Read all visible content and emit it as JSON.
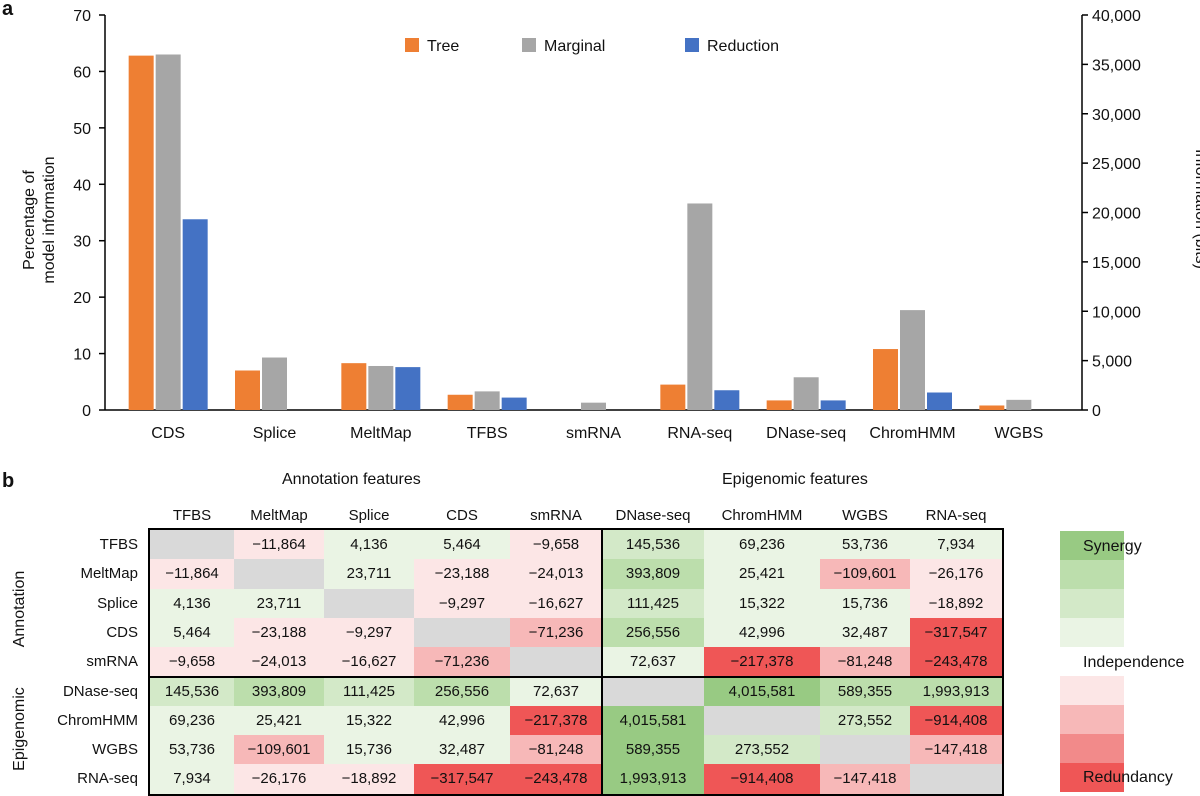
{
  "panel_a_label": "a",
  "panel_b_label": "b",
  "chart_data": [
    {
      "type": "bar",
      "title": "",
      "categories": [
        "CDS",
        "Splice",
        "MeltMap",
        "TFBS",
        "smRNA",
        "RNA-seq",
        "DNase-seq",
        "ChromHMM",
        "WGBS"
      ],
      "series": [
        {
          "name": "Tree",
          "color": "#ee7f33",
          "values": [
            62.8,
            7.0,
            8.3,
            2.7,
            null,
            4.5,
            1.7,
            10.8,
            0.8
          ]
        },
        {
          "name": "Marginal",
          "color": "#a6a6a6",
          "values": [
            63.0,
            9.3,
            7.8,
            3.3,
            1.3,
            36.6,
            5.8,
            17.7,
            1.8
          ]
        },
        {
          "name": "Reduction",
          "color": "#4472c4",
          "values": [
            33.8,
            null,
            7.6,
            2.2,
            null,
            3.5,
            1.7,
            3.1,
            null
          ]
        }
      ],
      "ylabel": "Percentage of\nmodel information",
      "ylim": [
        0,
        70
      ],
      "yticks": [
        "0",
        "10",
        "20",
        "30",
        "40",
        "50",
        "60",
        "70"
      ],
      "y2label": "Information (bits)",
      "y2lim": [
        0,
        40000
      ],
      "y2ticks": [
        "0",
        "5,000",
        "10,000",
        "15,000",
        "20,000",
        "25,000",
        "30,000",
        "35,000",
        "40,000"
      ],
      "legend_position": "top-center"
    },
    {
      "type": "heatmap",
      "group_titles": {
        "annotation": "Annotation features",
        "epigenomic": "Epigenomic features"
      },
      "side_labels": {
        "annotation": "Annotation",
        "epigenomic": "Epigenomic"
      },
      "columns": [
        "TFBS",
        "MeltMap",
        "Splice",
        "CDS",
        "smRNA",
        "DNase-seq",
        "ChromHMM",
        "WGBS",
        "RNA-seq"
      ],
      "rows": [
        "TFBS",
        "MeltMap",
        "Splice",
        "CDS",
        "smRNA",
        "DNase-seq",
        "ChromHMM",
        "WGBS",
        "RNA-seq"
      ],
      "cells": [
        [
          "",
          "−11,864",
          "4,136",
          "5,464",
          "−9,658",
          "145,536",
          "69,236",
          "53,736",
          "7,934"
        ],
        [
          "−11,864",
          "",
          "23,711",
          "−23,188",
          "−24,013",
          "393,809",
          "25,421",
          "−109,601",
          "−26,176"
        ],
        [
          "4,136",
          "23,711",
          "",
          "−9,297",
          "−16,627",
          "111,425",
          "15,322",
          "15,736",
          "−18,892"
        ],
        [
          "5,464",
          "−23,188",
          "−9,297",
          "",
          "−71,236",
          "256,556",
          "42,996",
          "32,487",
          "−317,547"
        ],
        [
          "−9,658",
          "−24,013",
          "−16,627",
          "−71,236",
          "",
          "72,637",
          "−217,378",
          "−81,248",
          "−243,478"
        ],
        [
          "145,536",
          "393,809",
          "111,425",
          "256,556",
          "72,637",
          "",
          "4,015,581",
          "589,355",
          "1,993,913"
        ],
        [
          "69,236",
          "25,421",
          "15,322",
          "42,996",
          "−217,378",
          "4,015,581",
          "",
          "273,552",
          "−914,408"
        ],
        [
          "53,736",
          "−109,601",
          "15,736",
          "32,487",
          "−81,248",
          "589,355",
          "273,552",
          "",
          "−147,418"
        ],
        [
          "7,934",
          "−26,176",
          "−18,892",
          "−317,547",
          "−243,478",
          "1,993,913",
          "−914,408",
          "−147,418",
          ""
        ]
      ],
      "cell_levels": [
        [
          null,
          -1,
          1,
          1,
          -1,
          2,
          1,
          1,
          1
        ],
        [
          -1,
          null,
          1,
          -1,
          -1,
          3,
          1,
          -2,
          -1
        ],
        [
          1,
          1,
          null,
          -1,
          -1,
          2,
          1,
          1,
          -1
        ],
        [
          1,
          -1,
          -1,
          null,
          -2,
          3,
          1,
          1,
          -4
        ],
        [
          -1,
          -1,
          -1,
          -2,
          null,
          1,
          -4,
          -2,
          -4
        ],
        [
          2,
          3,
          2,
          3,
          1,
          null,
          4,
          3,
          3
        ],
        [
          1,
          1,
          1,
          1,
          -4,
          4,
          null,
          2,
          -4
        ],
        [
          1,
          -2,
          1,
          1,
          -2,
          4,
          2,
          null,
          -2
        ],
        [
          1,
          -1,
          -1,
          -4,
          -4,
          4,
          -4,
          -2,
          null
        ]
      ],
      "legend": {
        "synergy": "Synergy",
        "independence": "Independence",
        "redundancy": "Redundancy"
      },
      "colors": {
        "synergy": [
          "#eaf4e4",
          "#d3e9c8",
          "#bcdeac",
          "#98ca83"
        ],
        "redundancy": [
          "#fce6e6",
          "#f7b8b8",
          "#f28a8a",
          "#ef5656"
        ],
        "diagonal": "#d9d9d9"
      }
    }
  ]
}
